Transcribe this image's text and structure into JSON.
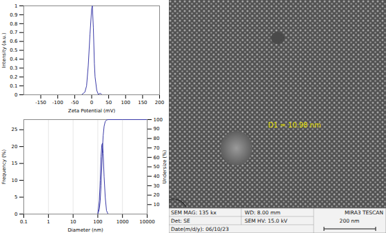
{
  "chart_data": [
    {
      "type": "line",
      "x_label": "Zeta Potential (mV)",
      "y_label": "Intensity (a.u.)",
      "x": [
        -40,
        -30,
        -20,
        -15,
        -10,
        -5,
        0,
        2,
        5,
        8,
        10,
        15,
        20,
        25,
        30
      ],
      "series": [
        {
          "name": "Intensity",
          "color": "#3a3aa8",
          "values": [
            0,
            0,
            0.03,
            0.1,
            0.33,
            0.68,
            0.97,
            1.0,
            0.75,
            0.35,
            0.2,
            0.05,
            0.0,
            0.02,
            0
          ]
        }
      ],
      "xlim": [
        -200,
        200
      ],
      "xticks": [
        -150,
        -100,
        -50,
        0,
        50,
        100,
        150,
        200
      ],
      "ylim": [
        0,
        1
      ],
      "yticks": [
        0,
        0.1,
        0.2,
        0.3,
        0.4,
        0.5,
        0.6,
        0.7,
        0.8,
        0.9,
        1
      ],
      "grid": false
    },
    {
      "type": "line",
      "x_label": "Diameter (nm)",
      "y_label": "Frequency (%)",
      "y2_label": "Undersize (%)",
      "log": "x",
      "x": [
        100,
        115,
        125,
        135,
        145,
        155,
        165,
        180,
        200,
        225,
        260,
        300,
        1000,
        10000
      ],
      "series": [
        {
          "name": "Frequency",
          "color": "#3a3aa8",
          "values": [
            0,
            4,
            10,
            17,
            20.5,
            21,
            18,
            11,
            5,
            1,
            0,
            0,
            0,
            0
          ]
        },
        {
          "name": "Undersize",
          "color": "#3a3aa8",
          "axis": "y2",
          "values": [
            0,
            5,
            14,
            30,
            50,
            70,
            83,
            93,
            98,
            99.5,
            100,
            100,
            100,
            100
          ]
        }
      ],
      "xlim": [
        0.1,
        10000
      ],
      "xticks": [
        0.1,
        1,
        10,
        100,
        1000,
        10000
      ],
      "ylim": [
        0,
        28
      ],
      "yticks": [
        0,
        5,
        10,
        15,
        20,
        25
      ],
      "y2lim": [
        0,
        100
      ],
      "y2ticks": [
        10,
        20,
        30,
        40,
        50,
        60,
        70,
        80,
        90,
        100
      ],
      "grid": true
    }
  ],
  "image": {
    "annotation": "D1 = 10.98 nm",
    "info": [
      [
        "SEM MAG: 135 kx",
        "WD: 8.00 mm",
        "MIRA3 TESCAN"
      ],
      [
        "Det: SE",
        "SEM HV: 15.0 kV",
        "200 nm"
      ],
      [
        "Date(m/d/y): 06/10/23"
      ]
    ]
  }
}
